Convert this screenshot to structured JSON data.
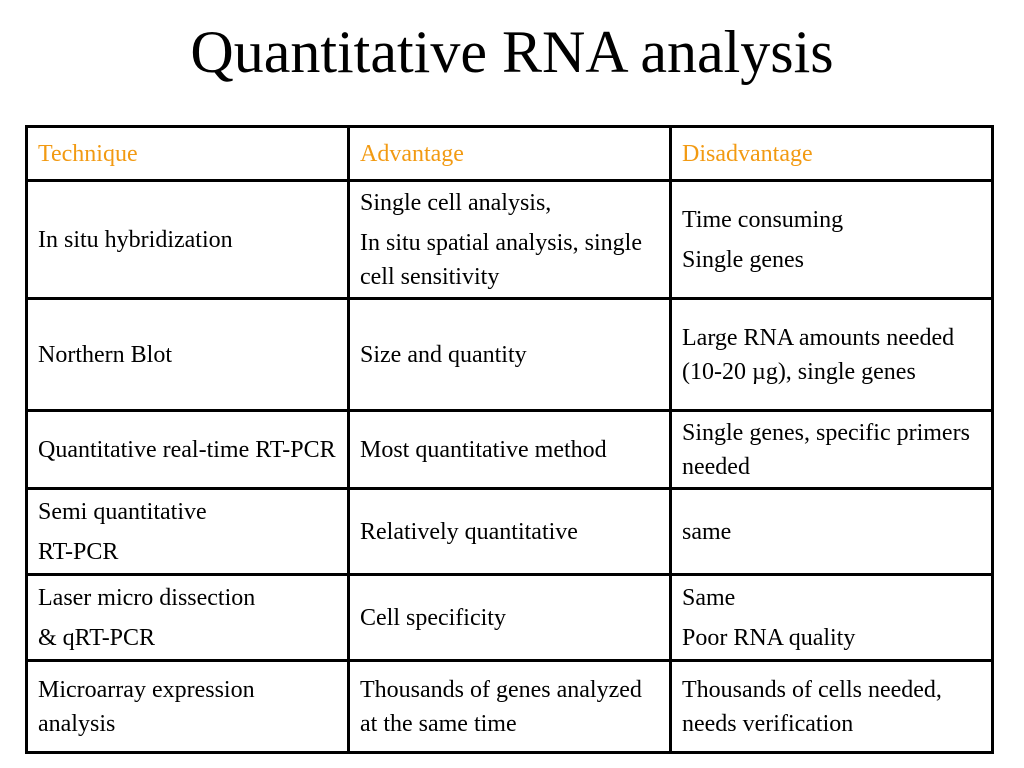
{
  "slide": {
    "title": "Quantitative RNA analysis"
  },
  "table": {
    "headers": [
      "Technique",
      "Advantage",
      "Disadvantage"
    ],
    "rows": [
      {
        "technique": [
          "In situ hybridization"
        ],
        "advantage": [
          "Single cell analysis,",
          "In situ spatial analysis, single cell sensitivity"
        ],
        "disadvantage": [
          "Time consuming",
          "Single genes"
        ]
      },
      {
        "technique": [
          "Northern Blot"
        ],
        "advantage": [
          "Size and quantity"
        ],
        "disadvantage": [
          "Large RNA amounts needed (10-20 µg), single genes"
        ]
      },
      {
        "technique": [
          "Quantitative real-time RT-PCR"
        ],
        "advantage": [
          "Most quantitative method"
        ],
        "disadvantage": [
          "Single genes, specific primers needed"
        ]
      },
      {
        "technique": [
          "Semi quantitative",
          "RT-PCR"
        ],
        "advantage": [
          "Relatively quantitative"
        ],
        "disadvantage": [
          "same"
        ]
      },
      {
        "technique": [
          "Laser micro dissection",
          "& qRT-PCR"
        ],
        "advantage": [
          "Cell specificity"
        ],
        "disadvantage": [
          "Same",
          "Poor RNA quality"
        ]
      },
      {
        "technique": [
          "Microarray expression analysis"
        ],
        "advantage": [
          "Thousands of genes analyzed at the same time"
        ],
        "disadvantage": [
          "Thousands of cells needed, needs verification"
        ]
      }
    ]
  },
  "colors": {
    "header_text": "#f29a12",
    "border": "#000000",
    "background": "#ffffff"
  }
}
